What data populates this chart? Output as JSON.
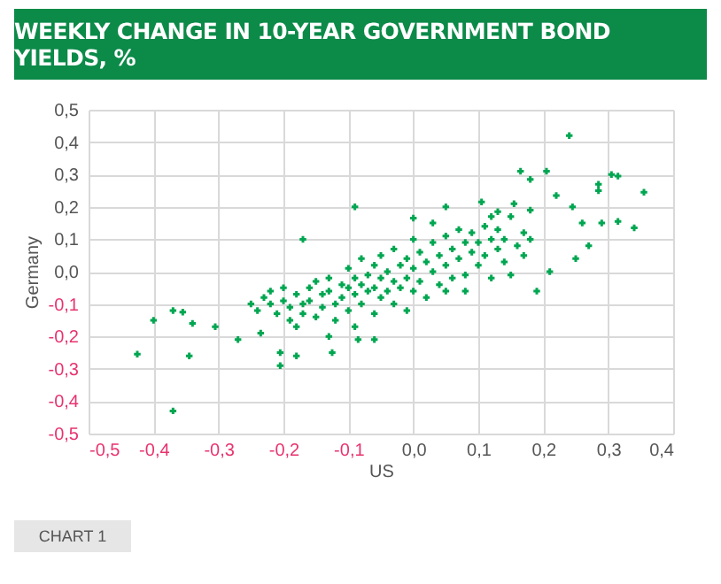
{
  "chart_data": {
    "type": "scatter",
    "title": "WEEKLY CHANGE IN 10-YEAR GOVERNMENT BOND YIELDS, %",
    "xlabel": "US",
    "ylabel": "Germany",
    "annotations": [
      "CHART 1"
    ],
    "color": "#00a651",
    "marker": "cross",
    "grid": true,
    "xlim": [
      -0.5,
      0.4
    ],
    "ylim": [
      -0.5,
      0.5
    ],
    "xticks": [
      {
        "value": -0.5,
        "label": "-0,5"
      },
      {
        "value": -0.4,
        "label": "-0,4"
      },
      {
        "value": -0.3,
        "label": "-0,3"
      },
      {
        "value": -0.2,
        "label": "-0,2"
      },
      {
        "value": -0.1,
        "label": "-0,1"
      },
      {
        "value": 0,
        "label": "0,0"
      },
      {
        "value": 0.1,
        "label": "0,1"
      },
      {
        "value": 0.2,
        "label": "0,2"
      },
      {
        "value": 0.3,
        "label": "0,3"
      },
      {
        "value": 0.4,
        "label": "0,4"
      }
    ],
    "yticks": [
      {
        "value": -0.5,
        "label": "-0,5"
      },
      {
        "value": -0.4,
        "label": "-0,4"
      },
      {
        "value": -0.3,
        "label": "-0,3"
      },
      {
        "value": -0.2,
        "label": "-0,2"
      },
      {
        "value": -0.1,
        "label": "-0,1"
      },
      {
        "value": 0,
        "label": "0,0"
      },
      {
        "value": 0.1,
        "label": "0,1"
      },
      {
        "value": 0.2,
        "label": "0,2"
      },
      {
        "value": 0.3,
        "label": "0,3"
      },
      {
        "value": 0.4,
        "label": "0,4"
      },
      {
        "value": 0.5,
        "label": "0,5"
      }
    ],
    "x": [
      -0.425,
      -0.4,
      -0.37,
      -0.355,
      -0.37,
      -0.34,
      -0.345,
      -0.305,
      -0.27,
      -0.235,
      -0.205,
      -0.205,
      -0.18,
      -0.17,
      -0.09,
      -0.13,
      -0.125,
      -0.085,
      -0.06,
      0.24,
      0.205,
      0.165,
      0.18,
      0.355,
      0.315,
      0.305,
      0.285,
      0.285,
      0.34,
      0.315,
      0.29,
      0.27,
      0.25,
      0.21,
      0.19,
      0.22,
      0.245,
      0.26,
      0.0,
      0.03,
      0.05,
      0.105,
      0.13,
      0.155,
      -0.25,
      -0.24,
      -0.23,
      -0.22,
      -0.22,
      -0.21,
      -0.2,
      -0.2,
      -0.19,
      -0.19,
      -0.18,
      -0.18,
      -0.17,
      -0.17,
      -0.16,
      -0.16,
      -0.15,
      -0.15,
      -0.14,
      -0.14,
      -0.13,
      -0.13,
      -0.12,
      -0.12,
      -0.11,
      -0.11,
      -0.1,
      -0.1,
      -0.1,
      -0.09,
      -0.09,
      -0.09,
      -0.08,
      -0.08,
      -0.08,
      -0.07,
      -0.07,
      -0.06,
      -0.06,
      -0.06,
      -0.05,
      -0.05,
      -0.05,
      -0.04,
      -0.04,
      -0.03,
      -0.03,
      -0.03,
      -0.02,
      -0.02,
      -0.01,
      -0.01,
      -0.01,
      0.0,
      0.0,
      0.0,
      0.01,
      0.01,
      0.02,
      0.02,
      0.03,
      0.03,
      0.04,
      0.04,
      0.05,
      0.05,
      0.06,
      0.06,
      0.07,
      0.07,
      0.08,
      0.08,
      0.09,
      0.09,
      0.1,
      0.1,
      0.11,
      0.11,
      0.12,
      0.12,
      0.13,
      0.13,
      0.14,
      0.14,
      0.15,
      0.16,
      0.17,
      0.17,
      0.18,
      0.18,
      0.15,
      0.08,
      0.05,
      0.12
    ],
    "values": [
      -0.255,
      -0.15,
      -0.12,
      -0.125,
      -0.43,
      -0.16,
      -0.26,
      -0.17,
      -0.21,
      -0.19,
      -0.29,
      -0.25,
      -0.26,
      0.1,
      0.2,
      -0.2,
      -0.25,
      -0.21,
      -0.21,
      0.42,
      0.31,
      0.31,
      0.285,
      0.245,
      0.295,
      0.3,
      0.27,
      0.25,
      0.135,
      0.155,
      0.15,
      0.08,
      0.04,
      0.0,
      -0.06,
      0.235,
      0.2,
      0.15,
      0.165,
      0.15,
      0.2,
      0.215,
      0.185,
      0.21,
      -0.1,
      -0.12,
      -0.08,
      -0.06,
      -0.1,
      -0.13,
      -0.05,
      -0.09,
      -0.15,
      -0.11,
      -0.07,
      -0.17,
      -0.1,
      -0.13,
      -0.05,
      -0.09,
      -0.14,
      -0.03,
      -0.07,
      -0.11,
      -0.02,
      -0.06,
      -0.1,
      -0.15,
      -0.04,
      -0.08,
      0.01,
      -0.05,
      -0.12,
      -0.02,
      -0.07,
      -0.17,
      0.04,
      -0.04,
      -0.1,
      -0.01,
      -0.06,
      0.02,
      -0.05,
      -0.13,
      0.05,
      -0.02,
      -0.08,
      0.0,
      -0.06,
      0.07,
      -0.03,
      -0.1,
      0.02,
      -0.05,
      0.04,
      -0.02,
      -0.12,
      0.1,
      0.01,
      -0.06,
      0.06,
      -0.03,
      0.03,
      -0.08,
      0.09,
      0.0,
      0.05,
      -0.04,
      0.11,
      0.02,
      0.07,
      -0.02,
      0.13,
      0.04,
      0.09,
      -0.01,
      0.06,
      0.12,
      0.02,
      0.09,
      0.14,
      0.05,
      0.1,
      -0.02,
      0.07,
      0.13,
      0.03,
      0.1,
      0.17,
      0.08,
      0.12,
      0.05,
      0.19,
      0.1,
      -0.01,
      -0.06,
      -0.06,
      0.17
    ]
  }
}
